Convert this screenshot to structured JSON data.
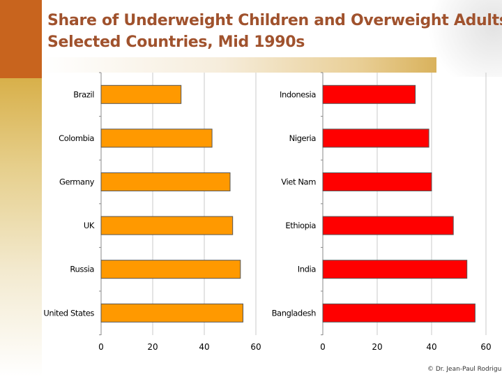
{
  "slide": {
    "title_line1": "Share of Underweight Children and Overweight Adults,",
    "title_line2": "Selected Countries, Mid 1990s",
    "credit": "© Dr. Jean-Paul Rodrigu"
  },
  "colors": {
    "left_bar": "#ff9900",
    "right_bar": "#ff0000"
  },
  "chart_data": [
    {
      "type": "bar",
      "orientation": "horizontal",
      "categories": [
        "Brazil",
        "Colombia",
        "Germany",
        "UK",
        "Russia",
        "United States"
      ],
      "series": [
        {
          "values": [
            31,
            43,
            50,
            51,
            54,
            55
          ]
        }
      ],
      "xlim": [
        0,
        60
      ],
      "xticks": [
        0,
        20,
        40,
        60
      ],
      "grid": true
    },
    {
      "type": "bar",
      "orientation": "horizontal",
      "categories": [
        "Indonesia",
        "Nigeria",
        "Viet Nam",
        "Ethiopia",
        "India",
        "Bangladesh"
      ],
      "series": [
        {
          "values": [
            34,
            39,
            40,
            48,
            53,
            56
          ]
        }
      ],
      "xlim": [
        0,
        60
      ],
      "xticks": [
        0,
        20,
        40,
        60
      ],
      "grid": true
    }
  ]
}
